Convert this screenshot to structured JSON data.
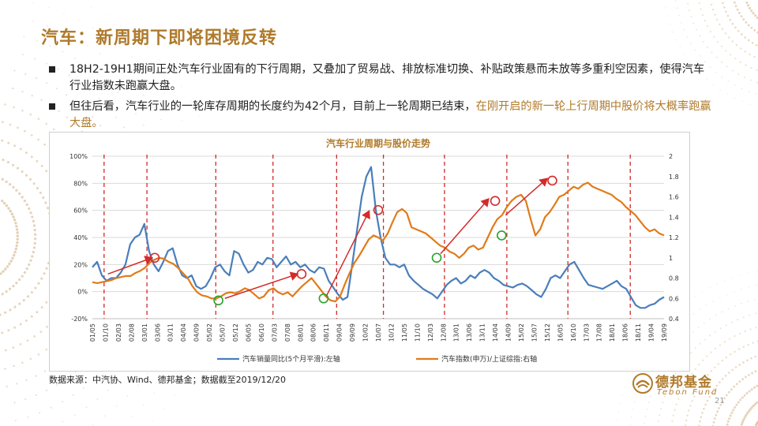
{
  "slide": {
    "title": "汽车：新周期下即将困境反转",
    "bullet_1": "18H2-19H1期间正处汽车行业固有的下行周期，又叠加了贸易战、排放标准切换、补贴政策悬而未放等多重利空因素，使得汽车行业指数未跑赢大盘。",
    "bullet_2_a": "但往后看，汽车行业的一轮库存周期的长度约为42个月，目前上一轮周期已结束，",
    "bullet_2_b": "在刚开启的新一轮上行周期中股价将大概率跑赢大盘。",
    "source": "数据来源：中汽协、Wind、德邦基金；数据截至2019/12/20",
    "logo_cn": "德邦基金",
    "logo_en": "Tebon Fund",
    "page_number": "21"
  },
  "colors": {
    "accent": "#b07a2a",
    "blue_series": "#4a7ebb",
    "orange_series": "#e07b1a",
    "marker_red": "#d42a2a",
    "marker_green": "#2aa12a",
    "arrow": "#d42a2a"
  },
  "chart_data": {
    "type": "line",
    "title": "汽车行业周期与股价走势",
    "x_labels": [
      "01/05",
      "01/10",
      "02/03",
      "02/08",
      "03/01",
      "03/06",
      "03/11",
      "04/04",
      "04/09",
      "05/02",
      "05/07",
      "05/12",
      "06/05",
      "06/10",
      "07/03",
      "07/08",
      "08/01",
      "08/06",
      "08/11",
      "09/04",
      "09/09",
      "10/02",
      "10/07",
      "10/12",
      "11/05",
      "11/10",
      "12/03",
      "12/08",
      "13/01",
      "13/06",
      "13/11",
      "14/04",
      "14/09",
      "15/02",
      "15/07",
      "15/12",
      "16/05",
      "16/10",
      "17/03",
      "17/08",
      "18/01",
      "18/06",
      "18/11",
      "19/04",
      "19/09"
    ],
    "y_left": {
      "min": -20,
      "max": 100,
      "ticks": [
        "-20%",
        "0%",
        "20%",
        "40%",
        "60%",
        "80%",
        "100%"
      ]
    },
    "y_right": {
      "min": 0.4,
      "max": 2.0,
      "ticks": [
        "0.4",
        "0.6",
        "0.8",
        "1",
        "1.2",
        "1.4",
        "1.6",
        "1.8",
        "2"
      ]
    },
    "series": [
      {
        "name": "汽车销量同比(5个月平滑):左轴",
        "axis": "left",
        "color": "#4a7ebb",
        "values": [
          18,
          22,
          12,
          8,
          10,
          10,
          14,
          20,
          35,
          40,
          42,
          50,
          30,
          20,
          15,
          22,
          30,
          32,
          20,
          12,
          10,
          12,
          4,
          2,
          4,
          10,
          18,
          20,
          15,
          12,
          30,
          28,
          20,
          14,
          16,
          22,
          20,
          25,
          24,
          18,
          22,
          26,
          20,
          22,
          18,
          20,
          16,
          14,
          18,
          17,
          8,
          3,
          -2,
          -6,
          -4,
          20,
          45,
          70,
          85,
          92,
          60,
          40,
          25,
          20,
          20,
          18,
          20,
          12,
          8,
          5,
          2,
          0,
          -2,
          -5,
          0,
          5,
          8,
          10,
          6,
          8,
          12,
          10,
          14,
          16,
          14,
          10,
          8,
          5,
          4,
          3,
          5,
          6,
          4,
          1,
          -2,
          -4,
          2,
          10,
          12,
          10,
          15,
          20,
          22,
          16,
          10,
          5,
          4,
          3,
          2,
          4,
          6,
          8,
          4,
          2,
          -4,
          -10,
          -12,
          -12,
          -10,
          -9,
          -6,
          -4
        ]
      },
      {
        "name": "汽车指数(申万)/上证综指:右轴",
        "axis": "right",
        "color": "#e07b1a",
        "values": [
          0.76,
          0.75,
          0.76,
          0.77,
          0.78,
          0.8,
          0.81,
          0.82,
          0.82,
          0.85,
          0.87,
          0.9,
          0.95,
          0.98,
          1.0,
          0.99,
          0.96,
          0.94,
          0.9,
          0.85,
          0.8,
          0.72,
          0.66,
          0.63,
          0.62,
          0.6,
          0.6,
          0.62,
          0.65,
          0.66,
          0.65,
          0.67,
          0.7,
          0.68,
          0.64,
          0.6,
          0.62,
          0.68,
          0.7,
          0.66,
          0.64,
          0.66,
          0.62,
          0.67,
          0.72,
          0.76,
          0.8,
          0.74,
          0.68,
          0.62,
          0.58,
          0.57,
          0.62,
          0.74,
          0.85,
          0.95,
          1.02,
          1.1,
          1.18,
          1.22,
          1.2,
          1.17,
          1.24,
          1.35,
          1.45,
          1.48,
          1.44,
          1.3,
          1.28,
          1.26,
          1.24,
          1.2,
          1.16,
          1.12,
          1.1,
          1.06,
          1.04,
          1.0,
          1.04,
          1.1,
          1.12,
          1.08,
          1.1,
          1.2,
          1.3,
          1.38,
          1.42,
          1.5,
          1.56,
          1.6,
          1.62,
          1.56,
          1.38,
          1.22,
          1.28,
          1.4,
          1.45,
          1.52,
          1.6,
          1.62,
          1.66,
          1.7,
          1.68,
          1.72,
          1.74,
          1.7,
          1.68,
          1.66,
          1.64,
          1.62,
          1.58,
          1.55,
          1.5,
          1.46,
          1.42,
          1.36,
          1.3,
          1.26,
          1.28,
          1.24,
          1.22
        ]
      }
    ],
    "cycle_markers_x_index": [
      0.9,
      4.2,
      9.5,
      13.9,
      18.8,
      22.4,
      27.1,
      31.9,
      36.6,
      41.4
    ],
    "markers": [
      {
        "type": "peak",
        "label_index": 4.8,
        "y_right": 1.0
      },
      {
        "type": "trough",
        "label_index": 9.7,
        "y_right": 0.58
      },
      {
        "type": "peak",
        "label_index": 16.1,
        "y_right": 0.84
      },
      {
        "type": "trough",
        "label_index": 17.8,
        "y_right": 0.6
      },
      {
        "type": "peak",
        "label_index": 22.0,
        "y_right": 1.47
      },
      {
        "type": "trough",
        "label_index": 26.5,
        "y_right": 1.0
      },
      {
        "type": "peak",
        "label_index": 31.0,
        "y_right": 1.56
      },
      {
        "type": "trough",
        "label_index": 31.5,
        "y_right": 1.22
      },
      {
        "type": "peak",
        "label_index": 35.4,
        "y_right": 1.76
      }
    ],
    "arrows": [
      {
        "from_index": 1.2,
        "from_y_right": 0.84,
        "to_index": 4.6,
        "to_y_right": 1.0
      },
      {
        "from_index": 10.2,
        "from_y_right": 0.6,
        "to_index": 15.8,
        "to_y_right": 0.84
      },
      {
        "from_index": 18.0,
        "from_y_right": 0.62,
        "to_index": 21.3,
        "to_y_right": 1.46
      },
      {
        "from_index": 26.8,
        "from_y_right": 1.04,
        "to_index": 30.5,
        "to_y_right": 1.58
      },
      {
        "from_index": 31.8,
        "from_y_right": 1.42,
        "to_index": 35.0,
        "to_y_right": 1.78
      }
    ]
  }
}
